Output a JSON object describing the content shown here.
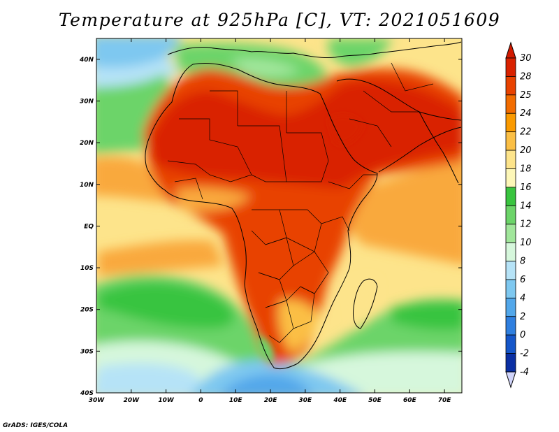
{
  "title": "Temperature at 925hPa [C], VT: 2021051609",
  "credit": "GrADS: IGES/COLA",
  "map": {
    "lon_range": [
      -30,
      75
    ],
    "lat_range": [
      -40,
      45
    ],
    "x_ticks": [
      {
        "value": -30,
        "label": "30W"
      },
      {
        "value": -20,
        "label": "20W"
      },
      {
        "value": -10,
        "label": "10W"
      },
      {
        "value": 0,
        "label": "0"
      },
      {
        "value": 10,
        "label": "10E"
      },
      {
        "value": 20,
        "label": "20E"
      },
      {
        "value": 30,
        "label": "30E"
      },
      {
        "value": 40,
        "label": "40E"
      },
      {
        "value": 50,
        "label": "50E"
      },
      {
        "value": 60,
        "label": "60E"
      },
      {
        "value": 70,
        "label": "70E"
      }
    ],
    "y_ticks": [
      {
        "value": 40,
        "label": "40N"
      },
      {
        "value": 30,
        "label": "30N"
      },
      {
        "value": 20,
        "label": "20N"
      },
      {
        "value": 10,
        "label": "10N"
      },
      {
        "value": 0,
        "label": "EQ"
      },
      {
        "value": -10,
        "label": "10S"
      },
      {
        "value": -20,
        "label": "20S"
      },
      {
        "value": -30,
        "label": "30S"
      },
      {
        "value": -40,
        "label": "40S"
      }
    ]
  },
  "colorbar": {
    "labels": [
      "30",
      "28",
      "25",
      "24",
      "22",
      "20",
      "18",
      "16",
      "14",
      "12",
      "10",
      "8",
      "6",
      "4",
      "2",
      "0",
      "-2",
      "-4"
    ],
    "colors": [
      "#d92200",
      "#e84200",
      "#f26c00",
      "#fa9a00",
      "#fbbf45",
      "#fde48b",
      "#fdf7b8",
      "#39c43f",
      "#6cd469",
      "#a1e69b",
      "#d6f7dc",
      "#b6e3f7",
      "#7ec8f0",
      "#52a7ea",
      "#2f7fdf",
      "#1556c9",
      "#0a2fa3",
      "#0a0f70"
    ],
    "top_color": "#d21a00",
    "bottom_color": "#d0d4fa"
  },
  "colors": {
    "ocean_warm": "#fde48b",
    "ocean_hot": "#f9a93e",
    "land_hot": "#d92200",
    "land_warm": "#e84200",
    "cool_green": "#6cd469",
    "cold_blue": "#52a7ea"
  }
}
